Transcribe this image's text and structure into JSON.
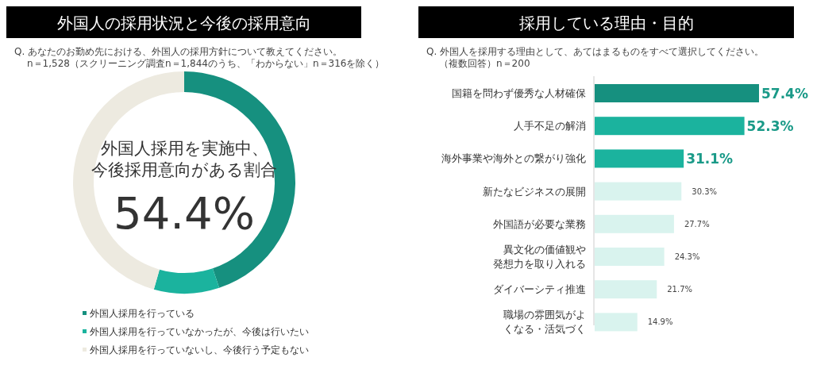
{
  "chart_data": [
    {
      "type": "donut",
      "title": "外国人の採用状況と今後の採用意向",
      "subtitle": "Q. あなたのお勤め先における、外国人の採用方針について教えてください。",
      "categories": [
        "外国人採用を行っている",
        "外国人採用を行っていなかったが、今後は行いたい",
        "外国人採用を行っていないし、今後行う予定もない"
      ],
      "values": [
        44.9,
        9.5,
        45.6
      ],
      "colors": [
        "#16907f",
        "#1bb39e",
        "#edeae0"
      ],
      "annotations": [
        "外国人採用を実施中、今後採用意向がある割合",
        "54.4%",
        "n＝1,528（スクリーニング調査n＝1,844のうち、「わからない」n＝316を除く）"
      ],
      "legend": "bottom"
    },
    {
      "type": "bar",
      "orientation": "horizontal",
      "relative": false,
      "title": "採用している理由・目的",
      "subtitle": "Q. 外国人を採用する理由として、あてはまるものをすべて選択してください。",
      "annotations": [
        "（複数回答）n＝200"
      ],
      "categories": [
        "国籍を問わず優秀な人材確保",
        "人手不足の解消",
        "海外事業や海外との繋がり強化",
        "新たなビジネスの展開",
        "外国語が必要な業務",
        "異文化の価値観や発想力を取り入れる",
        "ダイバーシティ推進",
        "職場の雰囲気がよくなる・活気づく"
      ],
      "values": [
        57.4,
        52.3,
        31.1,
        30.3,
        27.7,
        24.3,
        21.7,
        14.9
      ],
      "value_labels": [
        "57.4%",
        "52.3%",
        "31.1%",
        "30.3%",
        "27.7%",
        "24.3%",
        "21.7%",
        "14.9%"
      ],
      "colors": [
        "#16907f",
        "#1bb39e",
        "#1bb39e",
        "#d9f3ee",
        "#d9f3ee",
        "#d9f3ee",
        "#d9f3ee",
        "#d9f3ee"
      ]
    }
  ]
}
